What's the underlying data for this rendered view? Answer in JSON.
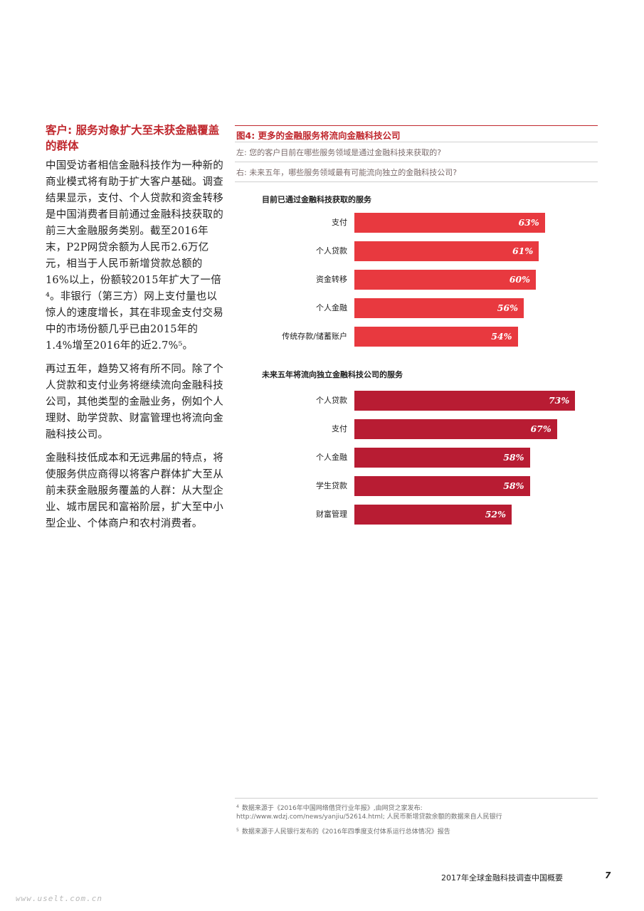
{
  "left": {
    "heading": "客户: 服务对象扩大至未获金融覆盖的群体",
    "para1": "中国受访者相信金融科技作为一种新的商业模式将有助于扩大客户基础。调查结果显示，支付、个人贷款和资金转移是中国消费者目前通过金融科技获取的前三大金融服务类别。截至2016年末，P2P网贷余额为人民币2.6万亿元，相当于人民币新增贷款总额的16%以上，份额较2015年扩大了一倍⁴。非银行（第三方）网上支付量也以惊人的速度增长，其在非现金支付交易中的市场份额几乎已由2015年的1.4%增至2016年的近2.7%⁵。",
    "para2": "再过五年，趋势又将有所不同。除了个人贷款和支付业务将继续流向金融科技公司，其他类型的金融业务，例如个人理财、助学贷款、财富管理也将流向金融科技公司。",
    "para3": "金融科技低成本和无远弗届的特点，将使服务供应商得以将客户群体扩大至从前未获金融服务覆盖的人群：从大型企业、城市居民和富裕阶层，扩大至中小型企业、个体商户和农村消费者。"
  },
  "figure": {
    "title": "图4: 更多的金融服务将流向金融科技公司",
    "sub_left": "左: 您的客户目前在哪些服务领域是通过金融科技来获取的?",
    "sub_right": "右: 未来五年，哪些服务领域最有可能流向独立的金融科技公司?"
  },
  "chart_data": [
    {
      "type": "bar",
      "title": "目前已通过金融科技获取的服务",
      "categories": [
        "支付",
        "个人贷款",
        "资金转移",
        "个人金融",
        "传统存款/储蓄账户"
      ],
      "values": [
        63,
        61,
        60,
        56,
        54
      ],
      "value_labels": [
        "63%",
        "61%",
        "60%",
        "56%",
        "54%"
      ],
      "color": "#e8393f"
    },
    {
      "type": "bar",
      "title": "未来五年将流向独立金融科技公司的服务",
      "categories": [
        "个人贷款",
        "支付",
        "个人金融",
        "学生贷款",
        "财富管理"
      ],
      "values": [
        73,
        67,
        58,
        58,
        52
      ],
      "value_labels": [
        "73%",
        "67%",
        "58%",
        "58%",
        "52%"
      ],
      "color": "#b81c33"
    }
  ],
  "footnotes": {
    "n4_mark": "4",
    "n4_line1": "数据来源于《2016年中国网络借贷行业年报》,由网贷之家发布:",
    "n4_line2": "http://www.wdzj.com/news/yanjiu/52614.html; 人民币新增贷款余额的数据来自人民银行",
    "n5_mark": "5",
    "n5_line1": "数据来源于人民银行发布的《2016年四季度支付体系运行总体情况》报告"
  },
  "footer": {
    "title": "2017年全球金融科技调查中国概要",
    "page": "7"
  },
  "watermark": "www.uselt.com.cn"
}
